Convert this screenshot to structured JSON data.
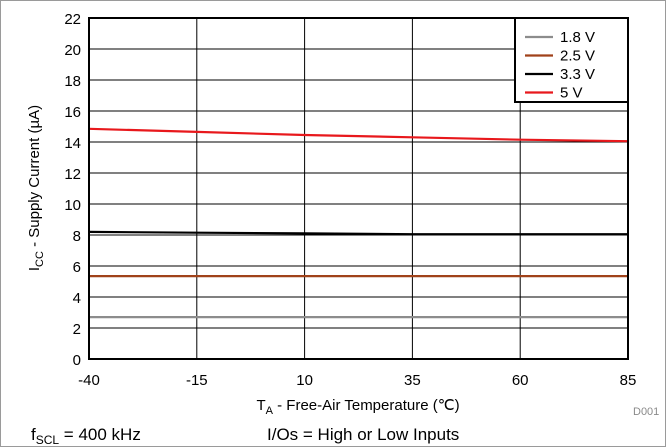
{
  "chart_data": {
    "type": "line",
    "xlabel": "T_A - Free-Air Temperature (℃)",
    "xlabel_parts": {
      "main": "T",
      "sub": "A",
      "rest": " - Free-Air Temperature (℃)"
    },
    "ylabel": "I_CC - Supply Current (µA)",
    "ylabel_parts": {
      "main": "I",
      "sub": "CC",
      "rest": " - Supply Current (µA)"
    },
    "xlim": [
      -40,
      85
    ],
    "ylim": [
      0,
      22
    ],
    "xticks": [
      -40,
      -15,
      10,
      35,
      60,
      85
    ],
    "yticks": [
      0,
      2,
      4,
      6,
      8,
      10,
      12,
      14,
      16,
      18,
      20,
      22
    ],
    "grid": true,
    "legend_position": "top-right",
    "x": [
      -40,
      -15,
      10,
      35,
      60,
      85
    ],
    "series": [
      {
        "name": "1.8 V",
        "color": "#8c8c8c",
        "values": [
          2.7,
          2.7,
          2.7,
          2.7,
          2.7,
          2.7
        ]
      },
      {
        "name": "2.5 V",
        "color": "#a0421a",
        "values": [
          5.35,
          5.35,
          5.35,
          5.35,
          5.35,
          5.35
        ]
      },
      {
        "name": "3.3 V",
        "color": "#000000",
        "values": [
          8.2,
          8.15,
          8.1,
          8.05,
          8.05,
          8.05
        ]
      },
      {
        "name": "5 V",
        "color": "#e8181c",
        "values": [
          14.85,
          14.65,
          14.45,
          14.3,
          14.15,
          14.05
        ]
      }
    ]
  },
  "figure_id": "D001",
  "footer": {
    "condition_1": {
      "main": "f",
      "sub": "SCL",
      "rest": " = 400 kHz"
    },
    "condition_2": "I/Os = High or Low Inputs"
  }
}
